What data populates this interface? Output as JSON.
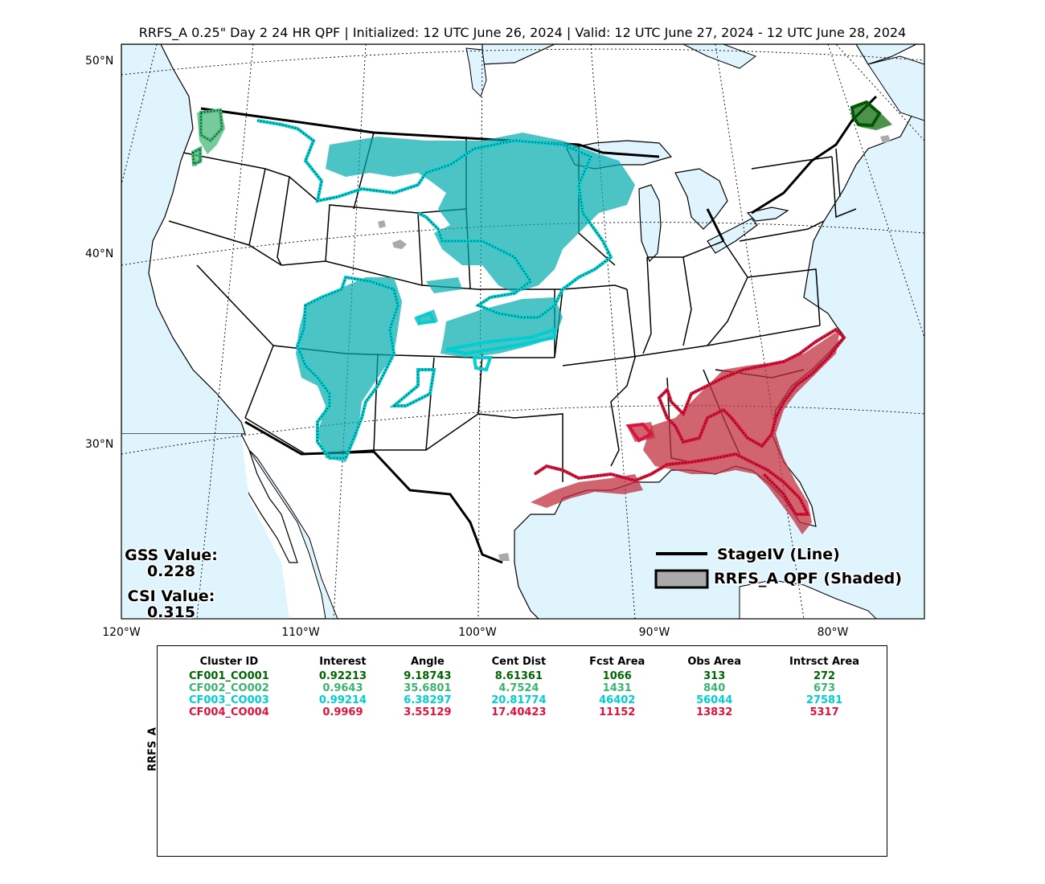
{
  "title": "RRFS_A 0.25\" Day 2 24 HR QPF | Initialized: 12 UTC June 26, 2024 | Valid: 12 UTC June 27, 2024 - 12 UTC June 28, 2024",
  "lat_labels": [
    "50°N",
    "40°N",
    "30°N"
  ],
  "lon_labels": [
    "120°W",
    "110°W",
    "100°W",
    "90°W",
    "80°W"
  ],
  "gss": {
    "label": "GSS Value:",
    "value": "0.228"
  },
  "csi": {
    "label": "CSI Value:",
    "value": "0.315"
  },
  "legend": {
    "line_label": "StageIV (Line)",
    "shaded_label": "RRFS_A QPF (Shaded)"
  },
  "colors": {
    "ocean": "#dff4fd",
    "land": "#ffffff",
    "unmatched": "#aaaaaa",
    "cluster1": "#006400",
    "cluster2": "#3cb371",
    "cluster3": "#00ced1",
    "cluster4": "#dc143c"
  },
  "table": {
    "y_label": "RRFS_A",
    "headers": [
      "Cluster ID",
      "Interest",
      "Angle",
      "Cent Dist",
      "Fcst Area",
      "Obs Area",
      "Intrsct Area"
    ],
    "rows": [
      {
        "color": "#006400",
        "cells": [
          "CF001_CO001",
          "0.92213",
          "9.18743",
          "8.61361",
          "1066",
          "313",
          "272"
        ]
      },
      {
        "color": "#3cb371",
        "cells": [
          "CF002_CO002",
          "0.9643",
          "35.6801",
          "4.7524",
          "1431",
          "840",
          "673"
        ]
      },
      {
        "color": "#00ced1",
        "cells": [
          "CF003_CO003",
          "0.99214",
          "6.38297",
          "20.81774",
          "46402",
          "56044",
          "27581"
        ]
      },
      {
        "color": "#dc143c",
        "cells": [
          "CF004_CO004",
          "0.9969",
          "3.55129",
          "17.40423",
          "11152",
          "13832",
          "5317"
        ]
      }
    ]
  }
}
